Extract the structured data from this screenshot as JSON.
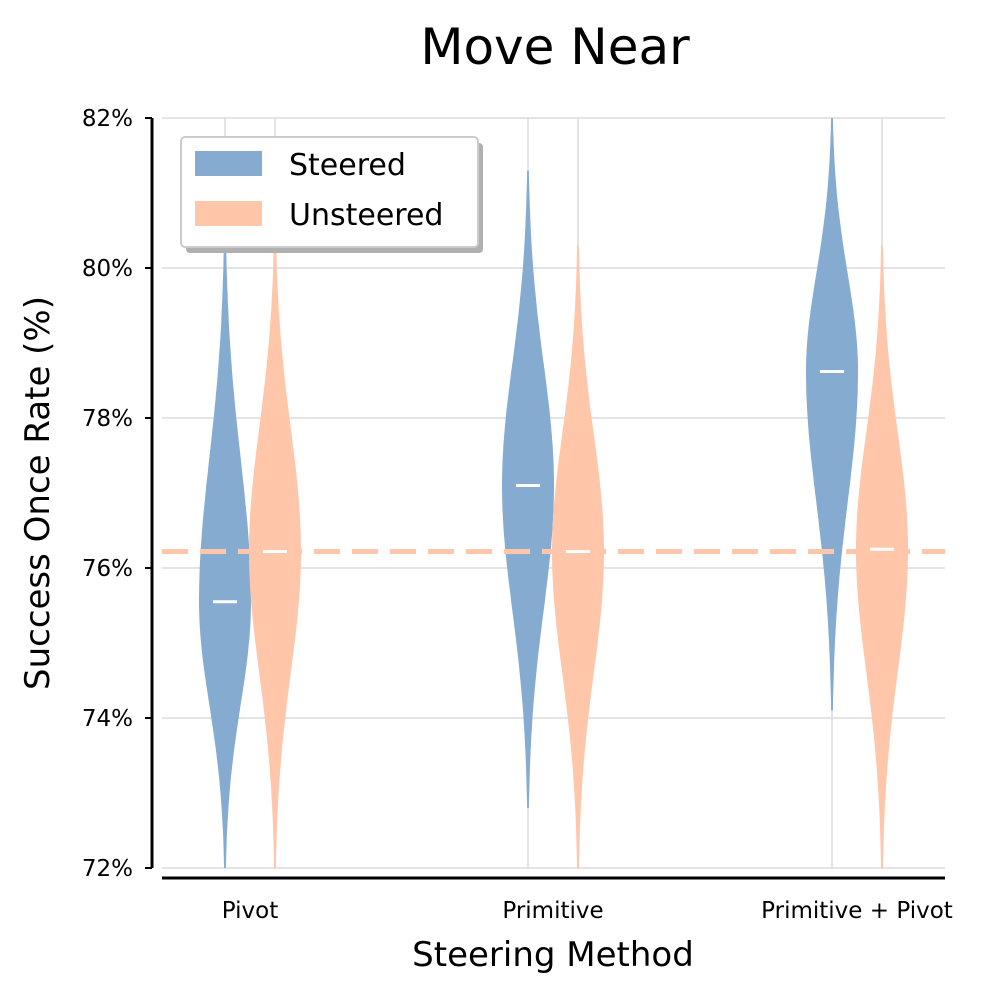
{
  "chart_data": {
    "type": "violin",
    "title": "Move Near",
    "xlabel": "Steering Method",
    "ylabel": "Success Once Rate (%)",
    "ylim": [
      72,
      82
    ],
    "yticks": [
      72,
      74,
      76,
      78,
      80,
      82
    ],
    "ytick_labels": [
      "72%",
      "74%",
      "76%",
      "78%",
      "80%",
      "82%"
    ],
    "categories": [
      "Pivot",
      "Primitive",
      "Primitive + Pivot"
    ],
    "grid": true,
    "legend_position": "top-left",
    "series": [
      {
        "name": "Steered",
        "color": "#85acd0",
        "groups": [
          {
            "median": 75.55,
            "min": 72.0,
            "max": 80.5
          },
          {
            "median": 77.1,
            "min": 72.8,
            "max": 81.3
          },
          {
            "median": 78.62,
            "min": 74.1,
            "max": 82.0
          }
        ]
      },
      {
        "name": "Unsteered",
        "color": "#ffc6aa",
        "groups": [
          {
            "median": 76.22,
            "min": 72.0,
            "max": 80.5
          },
          {
            "median": 76.22,
            "min": 72.0,
            "max": 80.3
          },
          {
            "median": 76.25,
            "min": 72.0,
            "max": 80.3
          }
        ]
      }
    ],
    "reference_line": {
      "value": 76.22,
      "style": "dashed",
      "color": "#ffc6aa"
    },
    "median_color": "#ffffff"
  }
}
